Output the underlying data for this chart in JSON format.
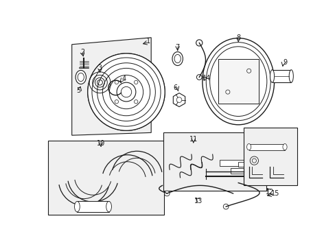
{
  "background_color": "#ffffff",
  "line_color": "#1a1a1a",
  "fill_color": "#f0f0f0",
  "figsize": [
    4.89,
    3.6
  ],
  "dpi": 100,
  "xlim": [
    0,
    489
  ],
  "ylim": [
    0,
    360
  ]
}
